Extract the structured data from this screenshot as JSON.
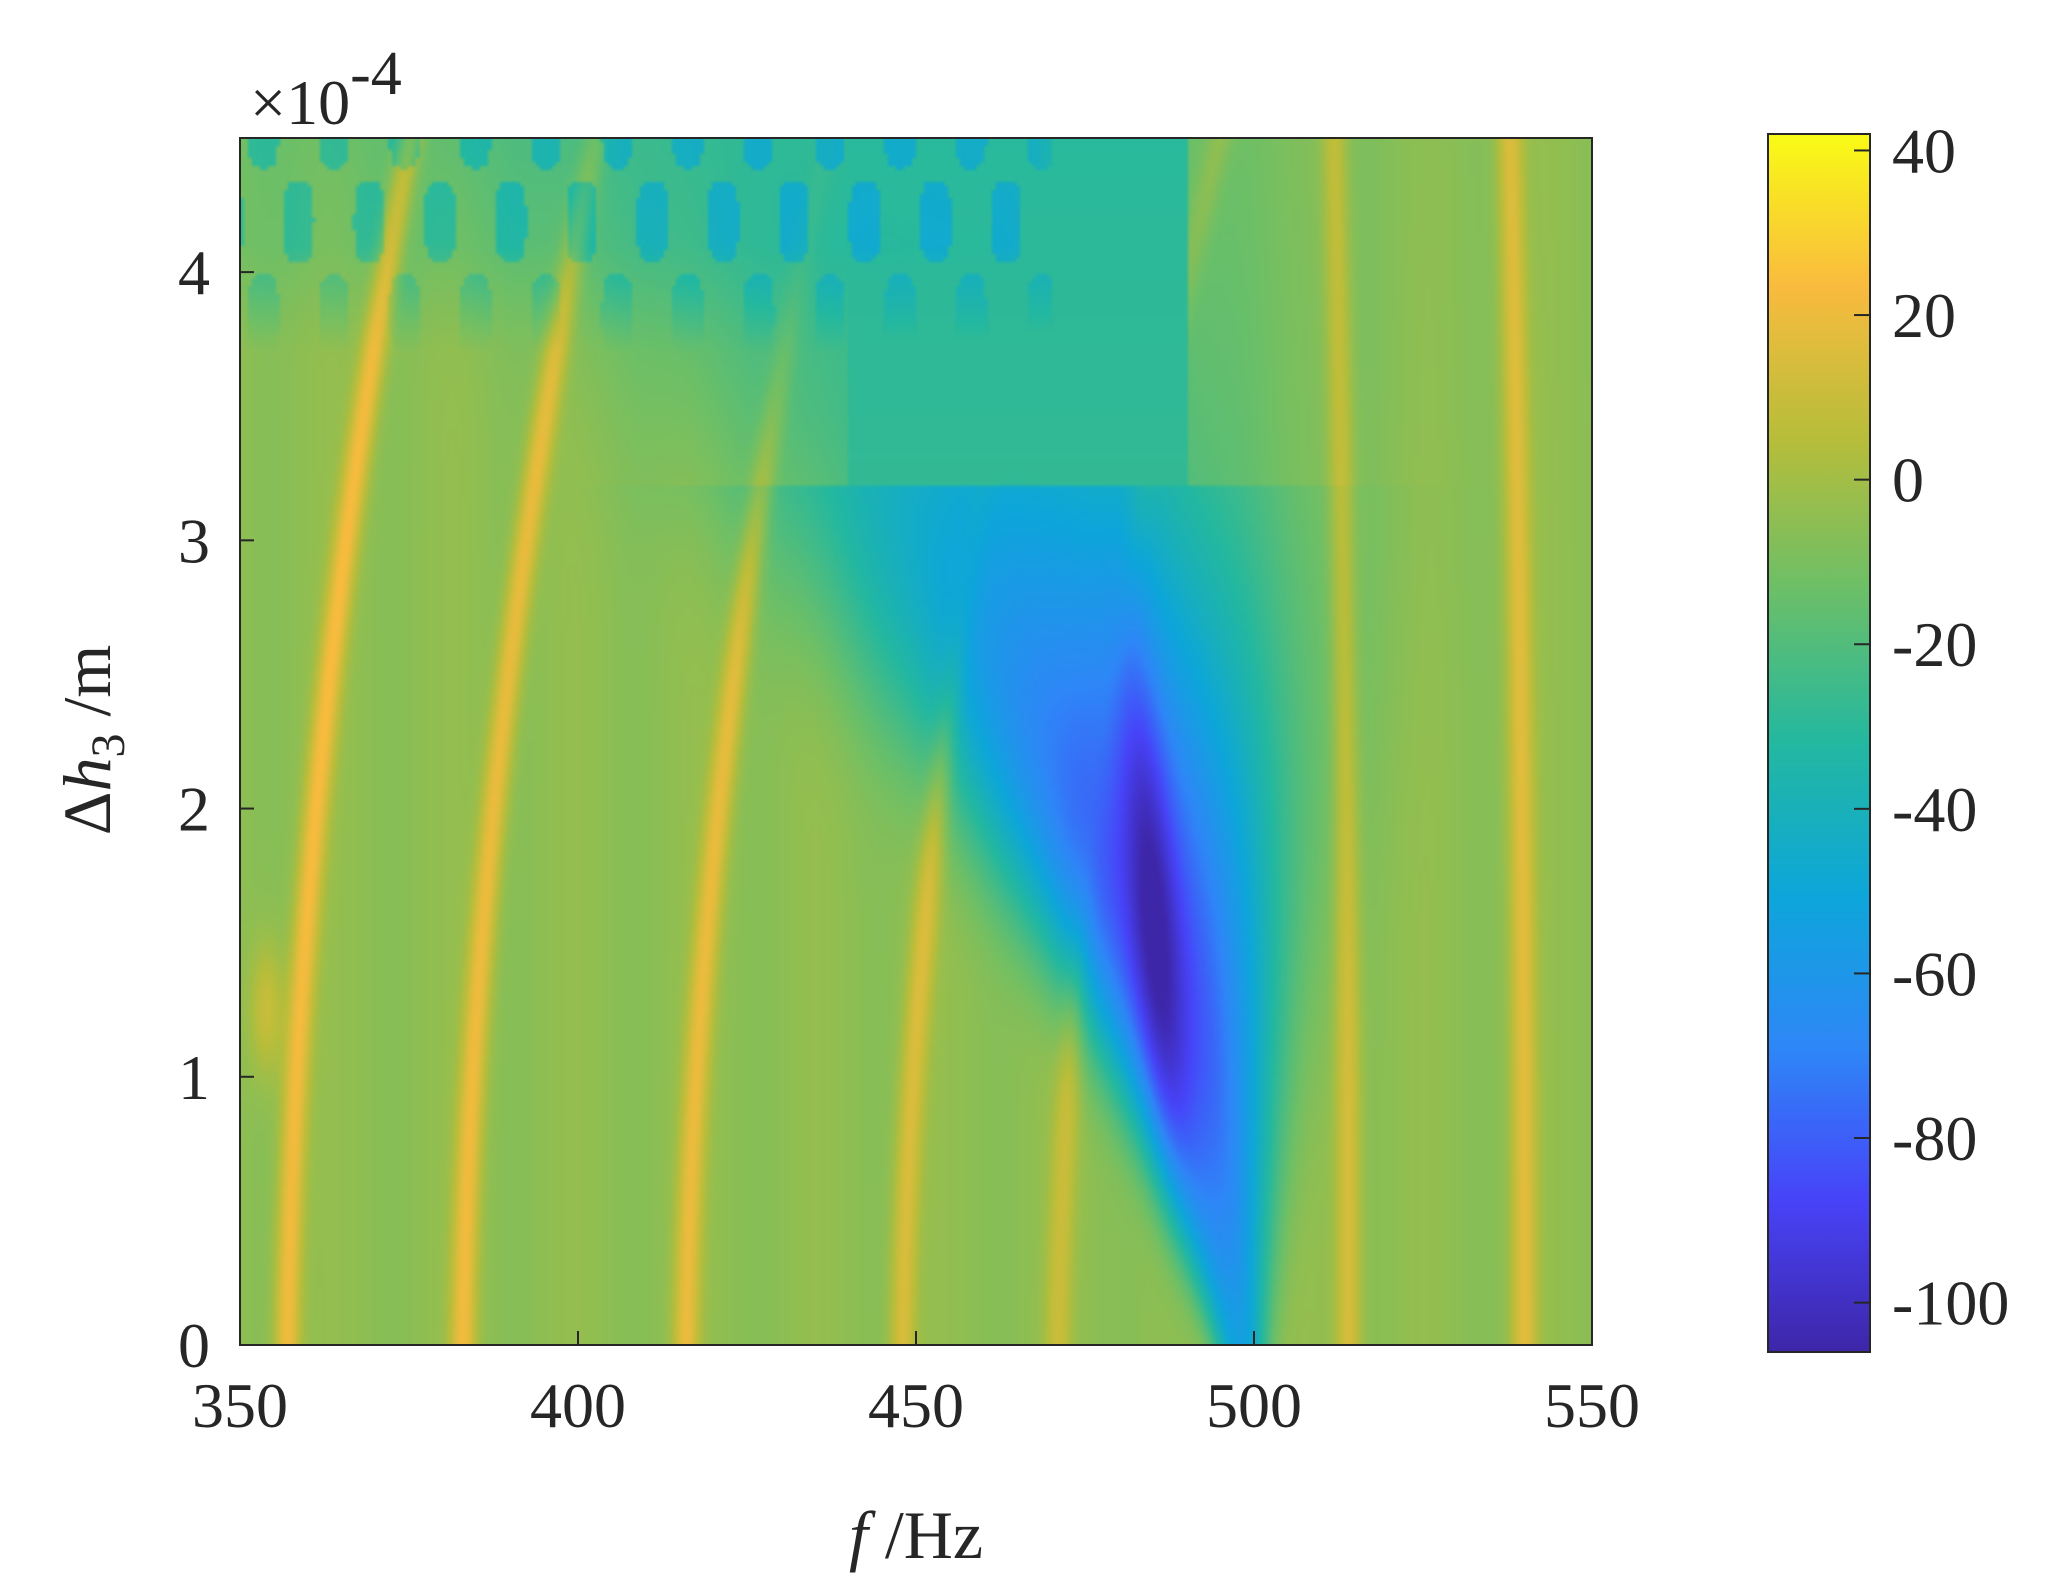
{
  "chart_data": {
    "type": "heatmap",
    "x": {
      "label_italic": "f",
      "label_unit": " /Hz",
      "range": [
        350,
        550
      ],
      "ticks": [
        350,
        400,
        450,
        500,
        550
      ],
      "tick_labels": [
        "350",
        "400",
        "450",
        "500",
        "550"
      ]
    },
    "y": {
      "label_prefix": "Δ",
      "label_italic": "h",
      "label_sub": "3",
      "label_unit": " /m",
      "range": [
        0,
        4.5
      ],
      "ticks": [
        0,
        1,
        2,
        3,
        4
      ],
      "tick_labels": [
        "0",
        "1",
        "2",
        "3",
        "4"
      ],
      "multiplier_base": "×10",
      "multiplier_exp": "-4"
    },
    "colorbar": {
      "range": [
        -106,
        42
      ],
      "ticks": [
        40,
        20,
        0,
        -20,
        -40,
        -60,
        -80,
        -100
      ],
      "tick_labels": [
        "40",
        "20",
        "0",
        "-20",
        "-40",
        "-60",
        "-80",
        "-100"
      ],
      "colormap": "parula",
      "colors": [
        "#3e26a8",
        "#4743f8",
        "#2e87f7",
        "#0da6da",
        "#23b8a0",
        "#6bbf68",
        "#b7bd3a",
        "#f9bb3e",
        "#f9fb15"
      ]
    },
    "features": {
      "background_value": -5,
      "resonance_lines": [
        {
          "f0": 357,
          "slope_f_per_unit": 2.2,
          "peak_value": 24
        },
        {
          "f0": 383,
          "slope_f_per_unit": 2.4,
          "peak_value": 22
        },
        {
          "f0": 416,
          "slope_f_per_unit": 2.6,
          "peak_value": 20
        },
        {
          "f0": 448,
          "slope_f_per_unit": 2.8,
          "peak_value": 16
        },
        {
          "f0": 471,
          "slope_f_per_unit": 3.0,
          "peak_value": 10
        },
        {
          "f0": 514,
          "slope_f_per_unit": -0.3,
          "peak_value": 16
        },
        {
          "f0": 540,
          "slope_f_per_unit": -0.3,
          "peak_value": 18
        }
      ],
      "antiresonance_band": {
        "center_f_at_0": 498,
        "min_value": -104,
        "notes": "deep minimum near f≈484 Hz, Δh3≈2e-4 m; band widens and shifts to lower f with increasing Δh3"
      }
    }
  }
}
